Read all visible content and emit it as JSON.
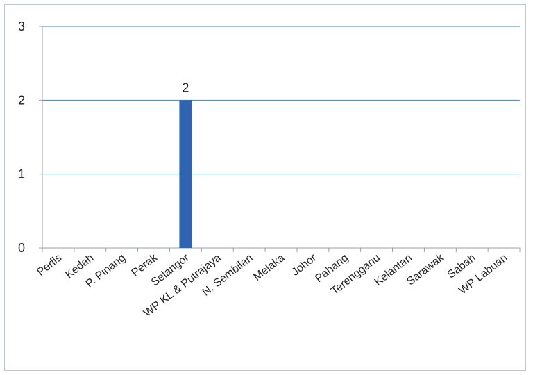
{
  "chart_data": {
    "type": "bar",
    "categories": [
      "Perlis",
      "Kedah",
      "P. Pinang",
      "Perak",
      "Selangor",
      "WP KL & Putrajaya",
      "N. Sembilan",
      "Melaka",
      "Johor",
      "Pahang",
      "Terengganu",
      "Kelantan",
      "Sarawak",
      "Sabah",
      "WP Labuan"
    ],
    "values": [
      0,
      0,
      0,
      0,
      2,
      0,
      0,
      0,
      0,
      0,
      0,
      0,
      0,
      0,
      0
    ],
    "data_labels": [
      null,
      null,
      null,
      null,
      "2",
      null,
      null,
      null,
      null,
      null,
      null,
      null,
      null,
      null,
      null
    ],
    "ylim": [
      0,
      3
    ],
    "yticks": [
      0,
      1,
      2,
      3
    ],
    "grid": true,
    "bar_color": "#2e64b0",
    "grid_color": "#4a7fb5",
    "axis_color": "#9aa0a6",
    "title": "",
    "xlabel": "",
    "ylabel": ""
  }
}
